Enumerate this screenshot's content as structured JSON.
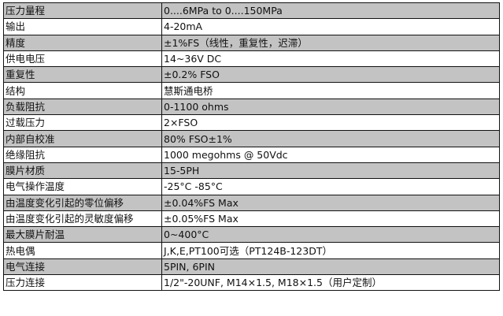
{
  "spec_table": {
    "rows": [
      {
        "label": "压力量程",
        "value": "0....6MPa to 0....150MPa"
      },
      {
        "label": "输出",
        "value": "4-20mA"
      },
      {
        "label": "精度",
        "value": "±1%FS（线性，重复性，迟滞）"
      },
      {
        "label": "供电电压",
        "value": "14~36V DC"
      },
      {
        "label": "重复性",
        "value": "±0.2% FSO"
      },
      {
        "label": "结构",
        "value": "慧斯通电桥"
      },
      {
        "label": "负载阻抗",
        "value": "0-1100 ohms"
      },
      {
        "label": "过载压力",
        "value": "2×FSO"
      },
      {
        "label": "内部自校准",
        "value": "80% FSO±1%"
      },
      {
        "label": "绝缘阻抗",
        "value": "1000 megohms @ 50Vdc"
      },
      {
        "label": "膜片材质",
        "value": "15-5PH"
      },
      {
        "label": "电气操作温度",
        "value": "-25°C -85°C"
      },
      {
        "label": "由温度变化引起的零位偏移",
        "value": "±0.04%FS Max"
      },
      {
        "label": "由温度变化引起的灵敏度偏移",
        "value": "±0.05%FS Max"
      },
      {
        "label": "最大膜片耐温",
        "value": "0~400°C"
      },
      {
        "label": "热电偶",
        "value": "J,K,E,PT100可选（PT124B-123DT）"
      },
      {
        "label": "电气连接",
        "value": "5PIN, 6PIN"
      },
      {
        "label": "压力连接",
        "value": "1/2\"-20UNF, M14×1.5, M18×1.5（用户定制）"
      }
    ],
    "shaded_row_color": "#c3c3c3"
  }
}
